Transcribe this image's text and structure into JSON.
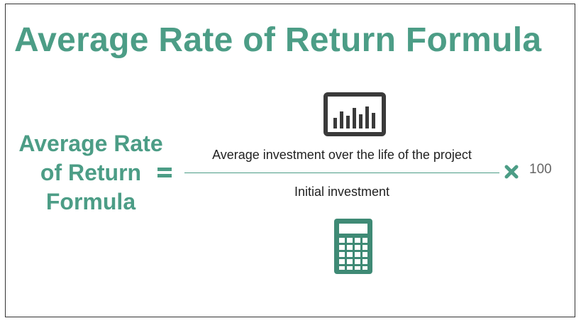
{
  "title": "Average Rate of Return Formula",
  "formula": {
    "lhs_lines": [
      "Average Rate",
      "of Return",
      "Formula"
    ],
    "numerator": "Average investment over the life of the project",
    "denominator": "Initial investment",
    "multiplier": "100"
  },
  "icons": {
    "top": "bar-chart-monitor-icon",
    "bottom": "calculator-icon",
    "equals": "equals-icon",
    "multiply": "multiply-icon"
  },
  "colors": {
    "accent": "#4c9d86",
    "icon_dark": "#3a3a3a",
    "text": "#222222",
    "muted": "#666666"
  }
}
